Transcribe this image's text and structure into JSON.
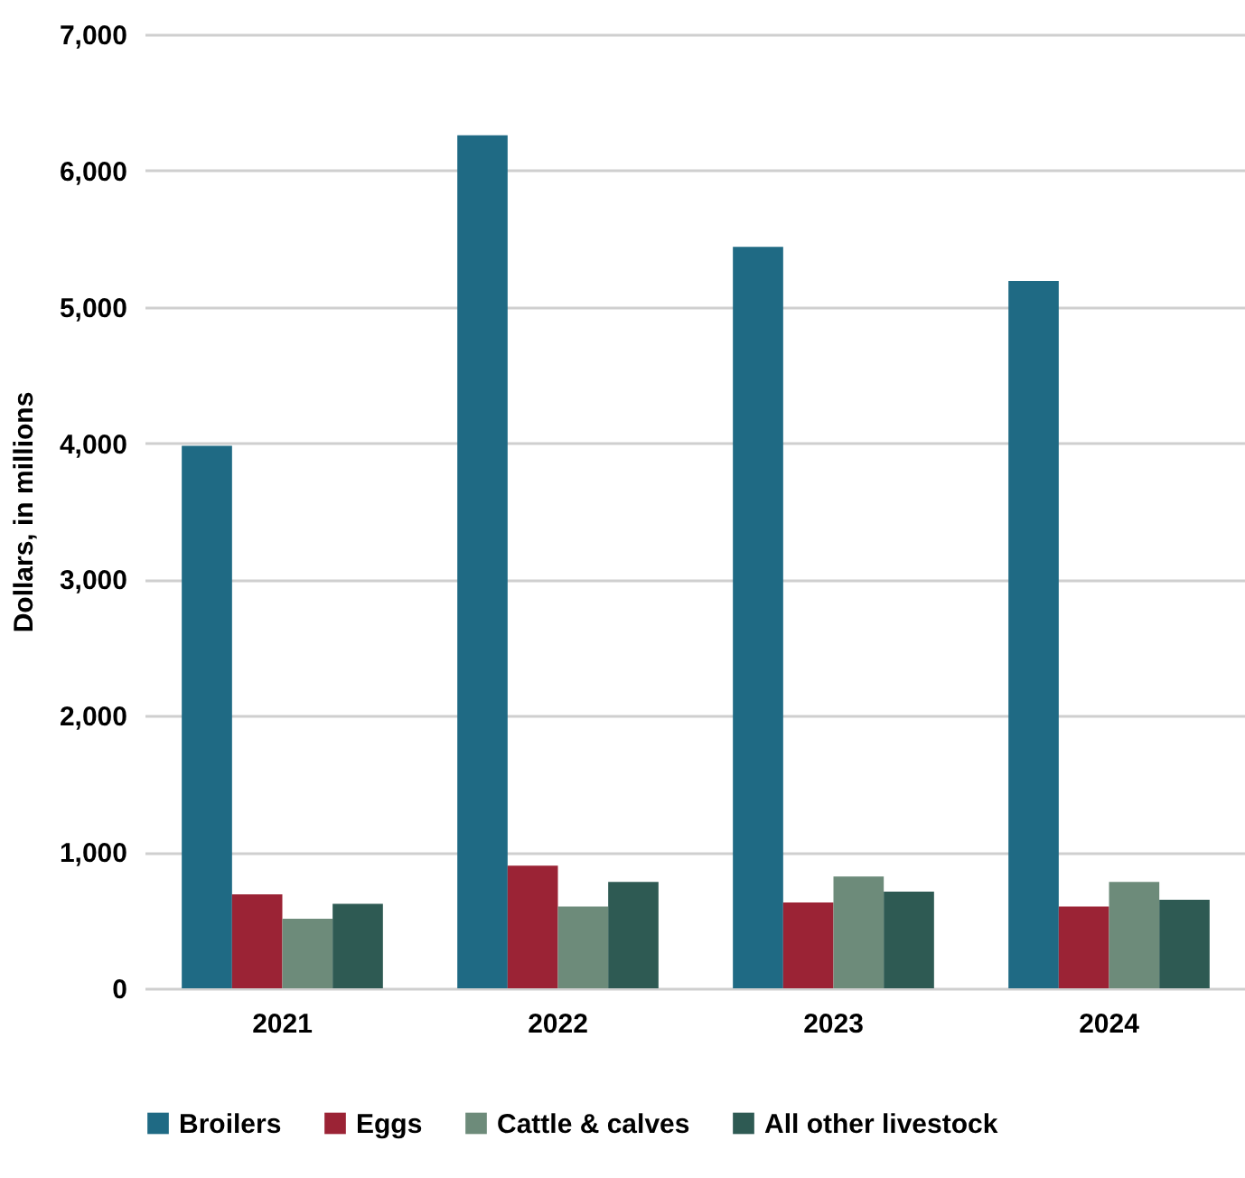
{
  "chart_data": {
    "type": "bar",
    "ylabel": "Dollars, in millions",
    "categories": [
      "2021",
      "2022",
      "2023",
      "2024"
    ],
    "series": [
      {
        "name": "Broilers",
        "color": "#1f6a84",
        "values": [
          3980,
          6260,
          5440,
          5190
        ]
      },
      {
        "name": "Eggs",
        "color": "#9b2335",
        "values": [
          690,
          900,
          630,
          600
        ]
      },
      {
        "name": "Cattle & calves",
        "color": "#6d8b7a",
        "values": [
          510,
          600,
          820,
          780
        ]
      },
      {
        "name": "All other livestock",
        "color": "#2e5a53",
        "values": [
          620,
          780,
          710,
          650
        ]
      }
    ],
    "ylim": [
      0,
      7000
    ],
    "yticks": [
      {
        "value": 0,
        "label": "0"
      },
      {
        "value": 1000,
        "label": "1,000"
      },
      {
        "value": 2000,
        "label": "2,000"
      },
      {
        "value": 3000,
        "label": "3,000"
      },
      {
        "value": 4000,
        "label": "4,000"
      },
      {
        "value": 5000,
        "label": "5,000"
      },
      {
        "value": 6000,
        "label": "6,000"
      },
      {
        "value": 7000,
        "label": "7,000"
      }
    ],
    "grid": "y",
    "legend": "bottom"
  }
}
